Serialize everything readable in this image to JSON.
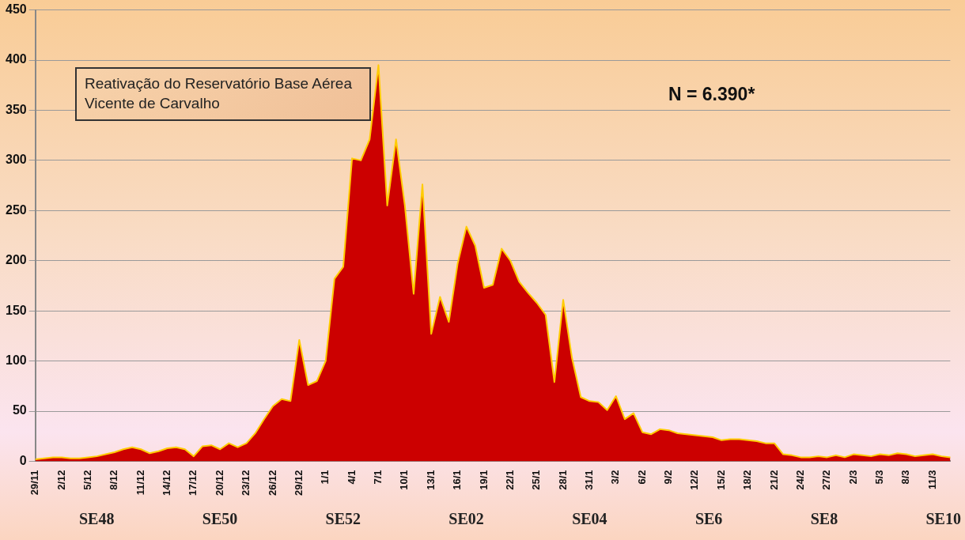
{
  "chart_data": {
    "type": "area",
    "categories": [
      "29/11",
      null,
      null,
      "2/12",
      null,
      null,
      "5/12",
      null,
      null,
      "8/12",
      null,
      null,
      "11/12",
      null,
      null,
      "14/12",
      null,
      null,
      "17/12",
      null,
      null,
      "20/12",
      null,
      null,
      "23/12",
      null,
      null,
      "26/12",
      null,
      null,
      "29/12",
      null,
      null,
      "1/1",
      null,
      null,
      "4/1",
      null,
      null,
      "7/1",
      null,
      null,
      "10/1",
      null,
      null,
      "13/1",
      null,
      null,
      "16/1",
      null,
      null,
      "19/1",
      null,
      null,
      "22/1",
      null,
      null,
      "25/1",
      null,
      null,
      "28/1",
      null,
      null,
      "31/1",
      null,
      null,
      "3/2",
      null,
      null,
      "6/2",
      null,
      null,
      "9/2",
      null,
      null,
      "12/2",
      null,
      null,
      "15/2",
      null,
      null,
      "18/2",
      null,
      null,
      "21/2",
      null,
      null,
      "24/2",
      null,
      null,
      "27/2",
      null,
      null,
      "2/3",
      null,
      null,
      "5/3",
      null,
      null,
      "8/3",
      null,
      null,
      "11/3",
      null,
      null
    ],
    "series": [
      {
        "color": "#cc0000",
        "values": [
          2,
          3,
          4,
          4,
          3,
          3,
          4,
          5,
          7,
          9,
          12,
          14,
          12,
          8,
          10,
          13,
          14,
          12,
          5,
          15,
          16,
          12,
          18,
          14,
          18,
          28,
          42,
          55,
          62,
          60,
          121,
          76,
          80,
          100,
          182,
          194,
          302,
          300,
          321,
          395,
          255,
          321,
          255,
          167,
          276,
          127,
          164,
          139,
          197,
          234,
          215,
          173,
          176,
          212,
          200,
          179,
          168,
          158,
          146,
          79,
          161,
          103,
          64,
          60,
          59,
          51,
          65,
          42,
          48,
          29,
          27,
          32,
          31,
          28,
          27,
          26,
          25,
          24,
          21,
          22,
          22,
          21,
          20,
          18,
          18,
          7,
          6,
          4,
          4,
          5,
          4,
          6,
          4,
          7,
          6,
          5,
          7,
          6,
          8,
          7,
          5,
          6,
          7,
          5,
          4
        ]
      }
    ],
    "ylim": [
      0,
      450
    ],
    "yticks": [
      0,
      50,
      100,
      150,
      200,
      250,
      300,
      350,
      400,
      450
    ],
    "grid": "y",
    "legend": false,
    "annotations": [
      "Reativação do Reservatório Base Aérea Vicente de Carvalho",
      "N = 6.390*",
      "SE48",
      "SE50",
      "SE52",
      "SE02",
      "SE04",
      "SE6",
      "SE8",
      "SE10"
    ]
  }
}
